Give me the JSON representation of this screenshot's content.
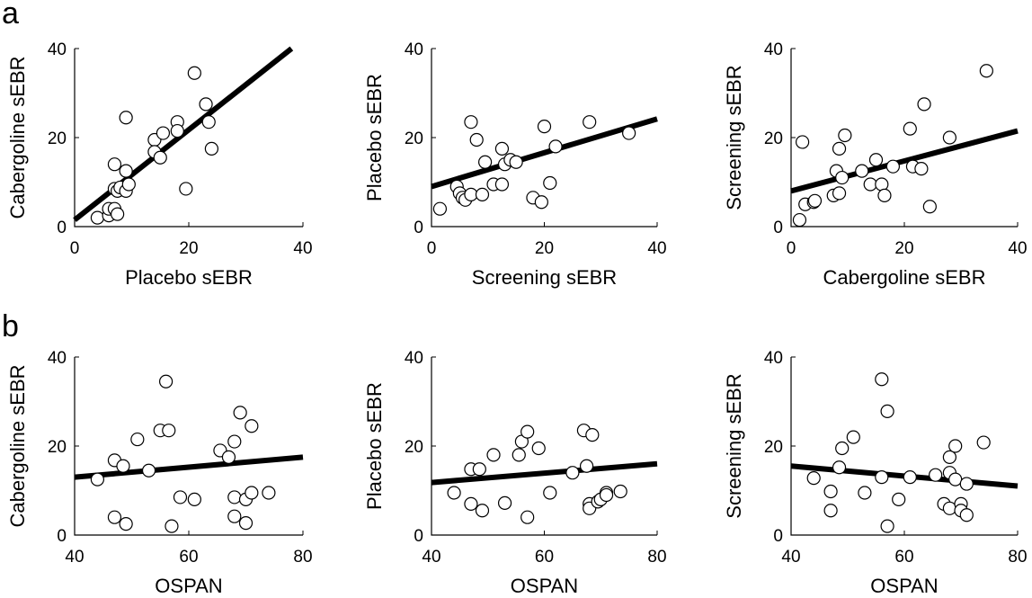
{
  "figure": {
    "panel_labels": [
      "a",
      "b"
    ]
  },
  "chart_data": [
    {
      "type": "scatter",
      "row": "a",
      "xlabel": "Placebo sEBR",
      "ylabel": "Cabergoline sEBR",
      "xlim": [
        0,
        40
      ],
      "ylim": [
        0,
        40
      ],
      "xticks": [
        "0",
        "20",
        "40"
      ],
      "yticks": [
        "0",
        "20",
        "40"
      ],
      "fit": [
        [
          0,
          1.5
        ],
        [
          38,
          40
        ]
      ],
      "points": [
        [
          4,
          2
        ],
        [
          6,
          2.5
        ],
        [
          6,
          4
        ],
        [
          7,
          4
        ],
        [
          7.5,
          2.8
        ],
        [
          7,
          8.5
        ],
        [
          7,
          14
        ],
        [
          7.5,
          8
        ],
        [
          8,
          8.8
        ],
        [
          9,
          12.5
        ],
        [
          9,
          8
        ],
        [
          9.5,
          9.5
        ],
        [
          9,
          24.5
        ],
        [
          14,
          19.5
        ],
        [
          14,
          16.8
        ],
        [
          15,
          15.5
        ],
        [
          15.5,
          21
        ],
        [
          18,
          23.5
        ],
        [
          18,
          21.5
        ],
        [
          19.5,
          8.5
        ],
        [
          21,
          34.5
        ],
        [
          23,
          27.5
        ],
        [
          23.5,
          23.5
        ],
        [
          24,
          17.5
        ]
      ]
    },
    {
      "type": "scatter",
      "row": "a",
      "xlabel": "Screening sEBR",
      "ylabel": "Placebo sEBR",
      "xlim": [
        0,
        40
      ],
      "ylim": [
        0,
        40
      ],
      "xticks": [
        "0",
        "20",
        "40"
      ],
      "yticks": [
        "0",
        "20",
        "40"
      ],
      "fit": [
        [
          0,
          9
        ],
        [
          40,
          24.2
        ]
      ],
      "points": [
        [
          1.5,
          4
        ],
        [
          4.5,
          9
        ],
        [
          5,
          7.5
        ],
        [
          5.5,
          6.5
        ],
        [
          6,
          6
        ],
        [
          7,
          7.2
        ],
        [
          7,
          23.5
        ],
        [
          8,
          19.5
        ],
        [
          9,
          7.2
        ],
        [
          9.5,
          14.5
        ],
        [
          11,
          9.5
        ],
        [
          12.5,
          9.5
        ],
        [
          12.5,
          17.5
        ],
        [
          13,
          14
        ],
        [
          14,
          15
        ],
        [
          15,
          14.5
        ],
        [
          18,
          6.5
        ],
        [
          19.5,
          5.5
        ],
        [
          20,
          22.5
        ],
        [
          21,
          9.8
        ],
        [
          22,
          18
        ],
        [
          28,
          23.5
        ],
        [
          35,
          21
        ]
      ]
    },
    {
      "type": "scatter",
      "row": "a",
      "xlabel": "Cabergoline sEBR",
      "ylabel": "Screening sEBR",
      "xlim": [
        0,
        40
      ],
      "ylim": [
        0,
        40
      ],
      "xticks": [
        "0",
        "20",
        "40"
      ],
      "yticks": [
        "0",
        "20",
        "40"
      ],
      "fit": [
        [
          0,
          8
        ],
        [
          40,
          21.5
        ]
      ],
      "points": [
        [
          1.5,
          1.5
        ],
        [
          2,
          19
        ],
        [
          2.5,
          5
        ],
        [
          4,
          5.5
        ],
        [
          4.2,
          5.8
        ],
        [
          7.5,
          7
        ],
        [
          8,
          12.5
        ],
        [
          8.5,
          17.5
        ],
        [
          8.5,
          7.5
        ],
        [
          9,
          11
        ],
        [
          9.5,
          20.5
        ],
        [
          12.5,
          12.5
        ],
        [
          14,
          9.5
        ],
        [
          15,
          15
        ],
        [
          16,
          9.5
        ],
        [
          16.5,
          7
        ],
        [
          18,
          13.5
        ],
        [
          21,
          22
        ],
        [
          21.5,
          13.5
        ],
        [
          23,
          13
        ],
        [
          23.5,
          27.5
        ],
        [
          24.5,
          4.5
        ],
        [
          28,
          20
        ],
        [
          34.5,
          35
        ]
      ]
    },
    {
      "type": "scatter",
      "row": "b",
      "xlabel": "OSPAN",
      "ylabel": "Cabergoline sEBR",
      "xlim": [
        40,
        80
      ],
      "ylim": [
        0,
        40
      ],
      "xticks": [
        "40",
        "60",
        "80"
      ],
      "yticks": [
        "0",
        "20",
        "40"
      ],
      "fit": [
        [
          40,
          13
        ],
        [
          80,
          17.5
        ]
      ],
      "points": [
        [
          44,
          12.5
        ],
        [
          47,
          16.8
        ],
        [
          47,
          4
        ],
        [
          48.5,
          15.5
        ],
        [
          49,
          2.5
        ],
        [
          51,
          21.5
        ],
        [
          53,
          14.5
        ],
        [
          55,
          23.5
        ],
        [
          56,
          34.5
        ],
        [
          56.5,
          23.5
        ],
        [
          57,
          2
        ],
        [
          58.5,
          8.5
        ],
        [
          61,
          8
        ],
        [
          65.5,
          19
        ],
        [
          67,
          17.5
        ],
        [
          68,
          21
        ],
        [
          68,
          4.2
        ],
        [
          68,
          8.5
        ],
        [
          69,
          27.5
        ],
        [
          70,
          2.7
        ],
        [
          70,
          8
        ],
        [
          71,
          24.5
        ],
        [
          71,
          9.5
        ],
        [
          74,
          9.5
        ]
      ]
    },
    {
      "type": "scatter",
      "row": "b",
      "xlabel": "OSPAN",
      "ylabel": "Placebo sEBR",
      "xlim": [
        40,
        80
      ],
      "ylim": [
        0,
        40
      ],
      "xticks": [
        "40",
        "60",
        "80"
      ],
      "yticks": [
        "0",
        "20",
        "40"
      ],
      "fit": [
        [
          40,
          11.8
        ],
        [
          80,
          16
        ]
      ],
      "points": [
        [
          44,
          9.5
        ],
        [
          47,
          14.8
        ],
        [
          47,
          7
        ],
        [
          48.5,
          14.8
        ],
        [
          49,
          5.5
        ],
        [
          51,
          18
        ],
        [
          53,
          7.2
        ],
        [
          55.5,
          18
        ],
        [
          56,
          21
        ],
        [
          57,
          23.2
        ],
        [
          57,
          4
        ],
        [
          59,
          19.5
        ],
        [
          61,
          9.5
        ],
        [
          65,
          14
        ],
        [
          67,
          23.5
        ],
        [
          67.5,
          15.5
        ],
        [
          68,
          7
        ],
        [
          68,
          6
        ],
        [
          68.5,
          22.5
        ],
        [
          69.5,
          7.5
        ],
        [
          70,
          8
        ],
        [
          71,
          9.5
        ],
        [
          71,
          9
        ],
        [
          73.5,
          9.8
        ]
      ]
    },
    {
      "type": "scatter",
      "row": "b",
      "xlabel": "OSPAN",
      "ylabel": "Screening sEBR",
      "xlim": [
        40,
        80
      ],
      "ylim": [
        0,
        40
      ],
      "xticks": [
        "40",
        "60",
        "80"
      ],
      "yticks": [
        "0",
        "20",
        "40"
      ],
      "fit": [
        [
          40,
          15.5
        ],
        [
          80,
          11
        ]
      ],
      "points": [
        [
          44,
          12.8
        ],
        [
          47,
          9.8
        ],
        [
          47,
          5.5
        ],
        [
          48.5,
          15.2
        ],
        [
          49,
          19.5
        ],
        [
          51,
          22
        ],
        [
          53,
          9.5
        ],
        [
          56,
          35
        ],
        [
          56,
          13
        ],
        [
          57,
          27.8
        ],
        [
          57,
          2
        ],
        [
          59,
          8
        ],
        [
          61,
          13
        ],
        [
          65.5,
          13.5
        ],
        [
          67,
          7
        ],
        [
          68,
          17.5
        ],
        [
          68,
          6
        ],
        [
          68,
          14
        ],
        [
          69,
          20
        ],
        [
          69,
          12.5
        ],
        [
          70,
          7
        ],
        [
          70,
          5.5
        ],
        [
          71,
          4.5
        ],
        [
          74,
          20.8
        ],
        [
          71,
          11.5
        ]
      ]
    }
  ]
}
